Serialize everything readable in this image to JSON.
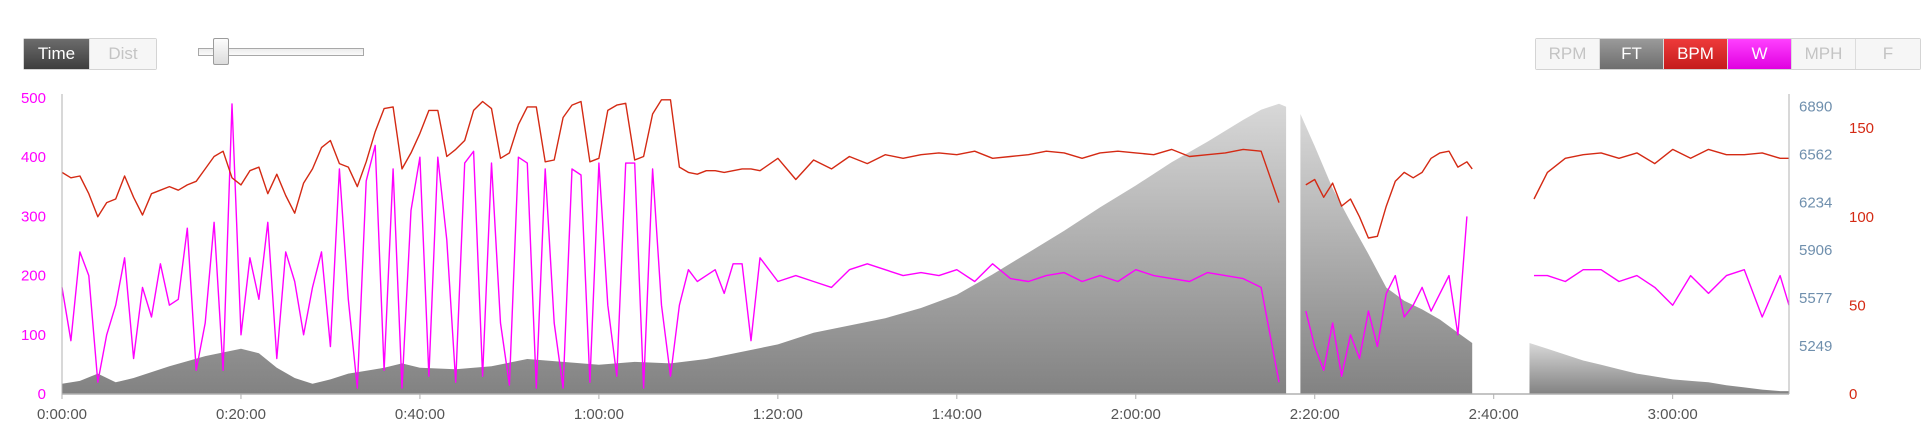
{
  "controls": {
    "mode_buttons": [
      {
        "label": "Time",
        "active": true
      },
      {
        "label": "Dist",
        "active": false
      }
    ],
    "zoom_slider_value": 0.1,
    "series_toggles": [
      {
        "label": "RPM",
        "active": false
      },
      {
        "label": "FT",
        "active": true
      },
      {
        "label": "BPM",
        "active": true
      },
      {
        "label": "W",
        "active": true
      },
      {
        "label": "MPH",
        "active": false
      },
      {
        "label": "F",
        "active": false
      }
    ]
  },
  "colors": {
    "watts": "#ff00ff",
    "heart_rate": "#d42a14",
    "elevation": "#8e8e8e",
    "elevation_axis": "#6f8fad",
    "axis": "#b0b0b0"
  },
  "chart_data": {
    "type": "line",
    "x_ticks": [
      "0:00:00",
      "0:20:00",
      "0:40:00",
      "1:00:00",
      "1:20:00",
      "1:40:00",
      "2:00:00",
      "2:20:00",
      "2:40:00",
      "3:00:00"
    ],
    "x_range_minutes": [
      0,
      193
    ],
    "y_axes": {
      "watts": {
        "ticks": [
          0,
          100,
          200,
          300,
          400,
          500
        ],
        "range": [
          0,
          500
        ]
      },
      "elevation_ft": {
        "ticks": [
          5249,
          5577,
          5906,
          6234,
          6562,
          6890
        ],
        "range": [
          4920,
          6950
        ]
      },
      "bpm": {
        "ticks": [
          0,
          50,
          100,
          150
        ],
        "range": [
          0,
          167
        ]
      }
    },
    "gaps_minutes": [
      [
        136.8,
        138.4
      ],
      [
        157.6,
        164
      ]
    ],
    "series": [
      {
        "name": "FT",
        "area": true,
        "x": [
          0,
          2,
          4,
          6,
          8,
          12,
          16,
          20,
          22,
          24,
          26,
          28,
          30,
          32,
          34,
          36,
          38,
          40,
          44,
          48,
          52,
          56,
          60,
          64,
          68,
          72,
          76,
          80,
          84,
          88,
          92,
          96,
          100,
          104,
          108,
          112,
          116,
          120,
          124,
          128,
          132,
          134,
          136,
          136.8,
          138.4,
          140,
          142,
          144,
          146,
          148,
          150,
          152,
          154,
          156,
          157.6,
          164,
          166,
          168,
          170,
          172,
          174,
          176,
          178,
          180,
          182,
          184,
          186,
          188,
          190,
          192,
          193
        ],
        "y": [
          4990,
          5010,
          5060,
          5000,
          5030,
          5110,
          5180,
          5230,
          5200,
          5100,
          5030,
          4990,
          5020,
          5060,
          5080,
          5100,
          5130,
          5100,
          5090,
          5110,
          5160,
          5140,
          5120,
          5140,
          5130,
          5160,
          5210,
          5260,
          5340,
          5390,
          5440,
          5510,
          5600,
          5740,
          5890,
          6040,
          6200,
          6350,
          6510,
          6650,
          6800,
          6870,
          6910,
          6890,
          6840,
          6620,
          6330,
          6100,
          5880,
          5650,
          5560,
          5500,
          5430,
          5340,
          5270,
          5270,
          5230,
          5190,
          5150,
          5120,
          5090,
          5060,
          5040,
          5020,
          5010,
          5000,
          4980,
          4965,
          4950,
          4940,
          4940
        ]
      },
      {
        "name": "BPM",
        "x": [
          0,
          1,
          2,
          3,
          4,
          5,
          6,
          7,
          8,
          9,
          10,
          11,
          12,
          13,
          14,
          15,
          16,
          17,
          18,
          19,
          20,
          21,
          22,
          23,
          24,
          25,
          26,
          27,
          28,
          29,
          30,
          31,
          32,
          33,
          34,
          35,
          36,
          37,
          38,
          39,
          40,
          41,
          42,
          43,
          44,
          45,
          46,
          47,
          48,
          49,
          50,
          51,
          52,
          53,
          54,
          55,
          56,
          57,
          58,
          59,
          60,
          61,
          62,
          63,
          64,
          65,
          66,
          67,
          68,
          69,
          70,
          71,
          72,
          73,
          74,
          75,
          76,
          77,
          78,
          80,
          82,
          84,
          86,
          88,
          90,
          92,
          94,
          96,
          98,
          100,
          102,
          104,
          106,
          108,
          110,
          112,
          114,
          116,
          118,
          120,
          122,
          124,
          126,
          128,
          130,
          132,
          134,
          136,
          136.8,
          138.4,
          139,
          140,
          141,
          142,
          143,
          144,
          145,
          146,
          147,
          148,
          149,
          150,
          151,
          152,
          153,
          154,
          155,
          156,
          157,
          157.6,
          164,
          164.5,
          166,
          168,
          170,
          172,
          174,
          176,
          178,
          180,
          182,
          184,
          186,
          188,
          190,
          192,
          193
        ],
        "y": [
          125,
          122,
          123,
          113,
          100,
          108,
          110,
          123,
          111,
          101,
          113,
          115,
          117,
          115,
          118,
          120,
          127,
          134,
          137,
          122,
          118,
          126,
          128,
          113,
          124,
          112,
          102,
          119,
          127,
          139,
          143,
          130,
          128,
          117,
          131,
          148,
          161,
          162,
          127,
          136,
          147,
          160,
          160,
          134,
          138,
          143,
          160,
          165,
          161,
          133,
          136,
          152,
          162,
          162,
          131,
          132,
          156,
          163,
          165,
          131,
          133,
          160,
          163,
          164,
          132,
          134,
          158,
          166,
          166,
          128,
          125,
          124,
          126,
          126,
          125,
          126,
          127,
          127,
          126,
          133,
          121,
          132,
          127,
          134,
          130,
          135,
          133,
          135,
          136,
          135,
          137,
          133,
          134,
          135,
          137,
          136,
          133,
          136,
          137,
          136,
          135,
          138,
          134,
          135,
          136,
          138,
          137,
          108,
          0,
          0,
          118,
          121,
          111,
          119,
          106,
          110,
          100,
          88,
          89,
          106,
          120,
          125,
          122,
          125,
          133,
          136,
          137,
          128,
          131,
          127,
          0,
          110,
          125,
          133,
          135,
          136,
          133,
          136,
          130,
          138,
          133,
          138,
          135,
          135,
          136,
          133,
          133
        ]
      },
      {
        "name": "W",
        "x": [
          0,
          1,
          2,
          3,
          4,
          5,
          6,
          7,
          8,
          9,
          10,
          11,
          12,
          13,
          14,
          15,
          16,
          17,
          18,
          19,
          20,
          21,
          22,
          23,
          24,
          25,
          26,
          27,
          28,
          29,
          30,
          31,
          32,
          33,
          34,
          35,
          36,
          37,
          38,
          39,
          40,
          41,
          42,
          43,
          44,
          45,
          46,
          47,
          48,
          49,
          50,
          51,
          52,
          53,
          54,
          55,
          56,
          57,
          58,
          59,
          60,
          61,
          62,
          63,
          64,
          65,
          66,
          67,
          68,
          69,
          70,
          71,
          72,
          73,
          74,
          75,
          76,
          77,
          78,
          80,
          82,
          84,
          86,
          88,
          90,
          92,
          94,
          96,
          98,
          100,
          102,
          104,
          106,
          108,
          110,
          112,
          114,
          116,
          118,
          120,
          122,
          124,
          126,
          128,
          130,
          132,
          134,
          136,
          136.8,
          138.4,
          139,
          140,
          141,
          142,
          143,
          144,
          145,
          146,
          147,
          148,
          149,
          150,
          151,
          152,
          153,
          154,
          155,
          156,
          157,
          157.6,
          164,
          164.5,
          166,
          168,
          170,
          172,
          174,
          176,
          178,
          180,
          182,
          184,
          186,
          188,
          190,
          192,
          193
        ],
        "y": [
          180,
          90,
          240,
          200,
          20,
          100,
          150,
          230,
          60,
          180,
          130,
          220,
          150,
          160,
          280,
          40,
          120,
          290,
          40,
          490,
          100,
          230,
          160,
          290,
          60,
          240,
          190,
          100,
          180,
          240,
          80,
          380,
          160,
          10,
          360,
          420,
          40,
          380,
          10,
          310,
          400,
          30,
          400,
          260,
          20,
          390,
          410,
          30,
          390,
          120,
          15,
          400,
          390,
          10,
          380,
          120,
          10,
          380,
          370,
          20,
          390,
          150,
          30,
          390,
          390,
          10,
          380,
          150,
          30,
          150,
          210,
          190,
          200,
          210,
          170,
          220,
          220,
          90,
          230,
          190,
          200,
          190,
          180,
          210,
          220,
          210,
          200,
          205,
          200,
          210,
          190,
          220,
          195,
          190,
          200,
          205,
          190,
          200,
          190,
          210,
          200,
          195,
          190,
          205,
          200,
          195,
          180,
          20,
          0,
          0,
          140,
          80,
          40,
          120,
          30,
          100,
          60,
          140,
          80,
          170,
          200,
          130,
          150,
          180,
          140,
          170,
          200,
          100,
          300,
          0,
          0,
          200,
          200,
          190,
          210,
          210,
          190,
          200,
          180,
          150,
          200,
          170,
          200,
          210,
          130,
          200,
          150
        ]
      }
    ]
  }
}
